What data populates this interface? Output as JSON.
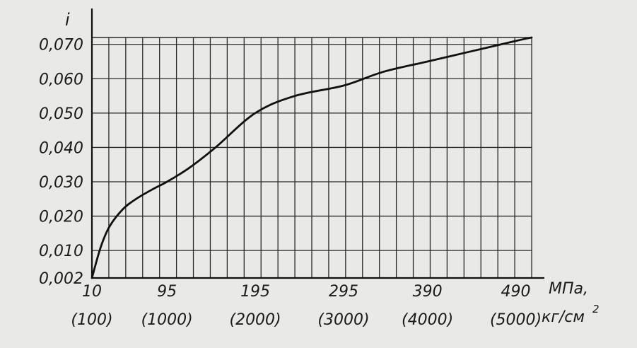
{
  "chart_data": {
    "type": "line",
    "ylabel": "i",
    "xlabel_unit_primary": "МПа,",
    "xlabel_unit_secondary": "кг/см",
    "xlabel_unit_secondary_sup": "2",
    "x_ticks": [
      {
        "value": 10,
        "label": "10",
        "sublabel": "(100)"
      },
      {
        "value": 95,
        "label": "95",
        "sublabel": "(1000)"
      },
      {
        "value": 195,
        "label": "195",
        "sublabel": "(2000)"
      },
      {
        "value": 295,
        "label": "295",
        "sublabel": "(3000)"
      },
      {
        "value": 390,
        "label": "390",
        "sublabel": "(4000)"
      },
      {
        "value": 490,
        "label": "490",
        "sublabel": "(5000)"
      }
    ],
    "y_ticks": [
      {
        "value": 0.002,
        "label": "0,002"
      },
      {
        "value": 0.01,
        "label": "0,010"
      },
      {
        "value": 0.02,
        "label": "0,020"
      },
      {
        "value": 0.03,
        "label": "0,030"
      },
      {
        "value": 0.04,
        "label": "0,040"
      },
      {
        "value": 0.05,
        "label": "0,050"
      },
      {
        "value": 0.06,
        "label": "0,060"
      },
      {
        "value": 0.07,
        "label": "0,070"
      }
    ],
    "xlim": [
      10,
      508
    ],
    "ylim": [
      0.002,
      0.072
    ],
    "grid": true,
    "series": [
      {
        "x": [
          10,
          20,
          30,
          45,
          60,
          80,
          95,
          120,
          150,
          195,
          240,
          295,
          340,
          390,
          440,
          490,
          508
        ],
        "y": [
          0.002,
          0.011,
          0.017,
          0.022,
          0.025,
          0.028,
          0.03,
          0.034,
          0.04,
          0.05,
          0.055,
          0.058,
          0.062,
          0.065,
          0.068,
          0.071,
          0.072
        ]
      }
    ]
  }
}
